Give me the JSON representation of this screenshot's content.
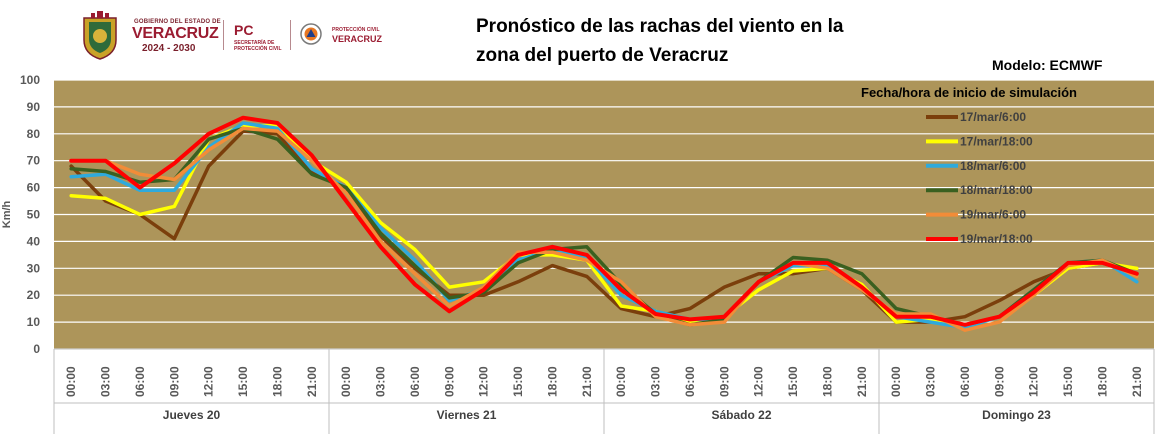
{
  "header": {
    "gov_small": "GOBIERNO DEL ESTADO DE",
    "gov_big": "VERACRUZ",
    "gov_years": "2024 - 2030",
    "pc_big": "PC",
    "pc_small": "SECRETARÍA DE PROTECCIÓN CIVIL",
    "pcv_small": "PROTECCIÓN CIVIL",
    "pcv_big": "VERACRUZ"
  },
  "title_line1": "Pronóstico de las rachas del viento en la",
  "title_line2": "zona del puerto de Veracruz",
  "model_label": "Modelo: ECMWF",
  "chart_data": {
    "type": "line",
    "ylabel": "Km/h",
    "ylim": [
      0,
      100
    ],
    "yticks": [
      0,
      10,
      20,
      30,
      40,
      50,
      60,
      70,
      80,
      90,
      100
    ],
    "hours": [
      "00:00",
      "03:00",
      "06:00",
      "09:00",
      "12:00",
      "15:00",
      "18:00",
      "21:00",
      "00:00",
      "03:00",
      "06:00",
      "09:00",
      "12:00",
      "15:00",
      "18:00",
      "21:00",
      "00:00",
      "03:00",
      "06:00",
      "09:00",
      "12:00",
      "15:00",
      "18:00",
      "21:00",
      "00:00",
      "03:00",
      "06:00",
      "09:00",
      "12:00",
      "15:00",
      "18:00",
      "21:00"
    ],
    "days": [
      "Jueves 20",
      "Viernes 21",
      "Sábado 22",
      "Domingo 23"
    ],
    "legend_title": "Fecha/hora de inicio de simulación",
    "legend_position": "top-right",
    "grid": true,
    "background": "#ad955a",
    "series": [
      {
        "name": "17/mar/6:00",
        "color": "#7b3f0c",
        "values": [
          68,
          55,
          50,
          41,
          68,
          81,
          80,
          66,
          60,
          42,
          30,
          20,
          20,
          25,
          31,
          27,
          15,
          12,
          15,
          23,
          28,
          28,
          30,
          22,
          10,
          10,
          12,
          18,
          25,
          30,
          32,
          28
        ]
      },
      {
        "name": "17/mar/18:00",
        "color": "#ffff00",
        "values": [
          57,
          56,
          50,
          53,
          78,
          83,
          83,
          70,
          62,
          47,
          37,
          23,
          25,
          35,
          35,
          33,
          16,
          14,
          10,
          12,
          22,
          29,
          30,
          24,
          10,
          11,
          9,
          12,
          20,
          30,
          32,
          30
        ]
      },
      {
        "name": "18/mar/6:00",
        "color": "#2eaadc",
        "values": [
          64,
          65,
          59,
          59,
          75,
          84,
          82,
          67,
          60,
          45,
          33,
          18,
          22,
          33,
          37,
          34,
          20,
          14,
          11,
          11,
          25,
          31,
          31,
          23,
          12,
          10,
          8,
          12,
          22,
          32,
          33,
          25
        ]
      },
      {
        "name": "18/mar/18:00",
        "color": "#3a6020",
        "values": [
          67,
          66,
          62,
          63,
          78,
          82,
          78,
          65,
          60,
          43,
          31,
          19,
          21,
          32,
          37,
          38,
          24,
          13,
          9,
          11,
          25,
          34,
          33,
          28,
          15,
          12,
          9,
          12,
          22,
          32,
          33,
          28
        ]
      },
      {
        "name": "19/mar/6:00",
        "color": "#f28c38",
        "values": [
          70,
          70,
          65,
          63,
          74,
          82,
          81,
          70,
          58,
          40,
          28,
          16,
          23,
          36,
          36,
          33,
          25,
          12,
          9,
          10,
          25,
          32,
          30,
          22,
          13,
          13,
          7,
          10,
          20,
          31,
          33,
          27
        ]
      },
      {
        "name": "19/mar/18:00",
        "color": "#ff0000",
        "values": [
          70,
          70,
          60,
          69,
          80,
          86,
          84,
          72,
          55,
          38,
          24,
          14,
          22,
          35,
          38,
          35,
          22,
          13,
          11,
          12,
          25,
          32,
          32,
          23,
          12,
          12,
          9,
          12,
          21,
          32,
          32,
          28
        ]
      }
    ]
  }
}
